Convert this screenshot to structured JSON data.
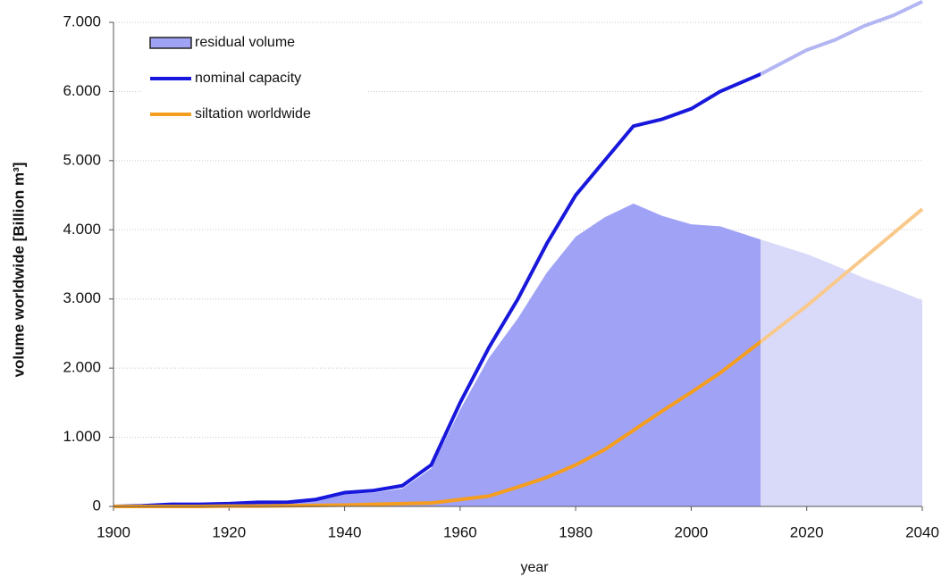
{
  "chart_data": {
    "type": "line",
    "x_label": "year",
    "y_label": "volume worldwide [Billion m³]",
    "x": [
      1900,
      1905,
      1910,
      1915,
      1920,
      1925,
      1930,
      1935,
      1940,
      1945,
      1950,
      1955,
      1960,
      1965,
      1970,
      1975,
      1980,
      1985,
      1990,
      1995,
      2000,
      2005,
      2012,
      2020,
      2025,
      2030,
      2035,
      2040
    ],
    "series": [
      {
        "name": "residual volume",
        "kind": "area",
        "color": "#a0a2f6",
        "projection_color": "#d9daf9",
        "values": [
          0,
          10,
          30,
          30,
          35,
          55,
          50,
          85,
          180,
          200,
          260,
          550,
          1400,
          2150,
          2720,
          3380,
          3900,
          4180,
          4380,
          4200,
          4080,
          4050,
          3860,
          3650,
          3480,
          3300,
          3150,
          2980
        ]
      },
      {
        "name": "nominal capacity",
        "kind": "line",
        "color": "#1818dc",
        "projection_color": "#b3b6f2",
        "values": [
          0,
          10,
          30,
          30,
          40,
          60,
          60,
          100,
          200,
          230,
          300,
          600,
          1500,
          2300,
          3000,
          3800,
          4500,
          5000,
          5500,
          5600,
          5750,
          6000,
          6250,
          6600,
          6750,
          6950,
          7100,
          7300
        ]
      },
      {
        "name": "siltation worldwide",
        "kind": "line",
        "color": "#f59d1e",
        "projection_color": "#f9c98b",
        "values": [
          0,
          0,
          0,
          0,
          5,
          5,
          10,
          15,
          20,
          30,
          40,
          50,
          100,
          150,
          280,
          420,
          600,
          820,
          1100,
          1380,
          1650,
          1930,
          2380,
          2900,
          3250,
          3600,
          3950,
          4300
        ]
      }
    ],
    "projection_from": 2012,
    "xlim": [
      1900,
      2040
    ],
    "xticks": [
      1900,
      1920,
      1940,
      1960,
      1980,
      2000,
      2020,
      2040
    ],
    "ylim": [
      0,
      7000
    ],
    "yticks": [
      0,
      {
        "value": 1000,
        "label": "1.000"
      },
      {
        "value": 2000,
        "label": "2.000"
      },
      {
        "value": 3000,
        "label": "3.000"
      },
      {
        "value": 4000,
        "label": "4.000"
      },
      {
        "value": 5000,
        "label": "5.000"
      },
      {
        "value": 6000,
        "label": "6.000"
      },
      {
        "value": 7000,
        "label": "7.000"
      }
    ],
    "grid": true,
    "legend": "top-left"
  }
}
